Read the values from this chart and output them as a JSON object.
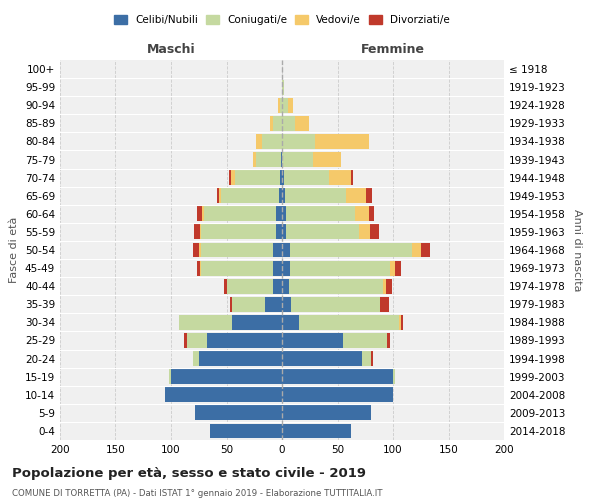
{
  "age_groups": [
    "0-4",
    "5-9",
    "10-14",
    "15-19",
    "20-24",
    "25-29",
    "30-34",
    "35-39",
    "40-44",
    "45-49",
    "50-54",
    "55-59",
    "60-64",
    "65-69",
    "70-74",
    "75-79",
    "80-84",
    "85-89",
    "90-94",
    "95-99",
    "100+"
  ],
  "birth_years": [
    "2014-2018",
    "2009-2013",
    "2004-2008",
    "1999-2003",
    "1994-1998",
    "1989-1993",
    "1984-1988",
    "1979-1983",
    "1974-1978",
    "1969-1973",
    "1964-1968",
    "1959-1963",
    "1954-1958",
    "1949-1953",
    "1944-1948",
    "1939-1943",
    "1934-1938",
    "1929-1933",
    "1924-1928",
    "1919-1923",
    "≤ 1918"
  ],
  "male": {
    "celibi": [
      65,
      78,
      105,
      100,
      75,
      68,
      45,
      15,
      8,
      8,
      8,
      5,
      5,
      3,
      2,
      1,
      0,
      0,
      0,
      0,
      0
    ],
    "coniugati": [
      0,
      0,
      0,
      2,
      5,
      18,
      48,
      30,
      42,
      65,
      65,
      68,
      65,
      52,
      40,
      22,
      18,
      8,
      2,
      0,
      0
    ],
    "vedovi": [
      0,
      0,
      0,
      0,
      0,
      0,
      0,
      0,
      0,
      1,
      2,
      1,
      2,
      2,
      4,
      3,
      5,
      3,
      2,
      0,
      0
    ],
    "divorziati": [
      0,
      0,
      0,
      0,
      0,
      2,
      0,
      2,
      2,
      3,
      5,
      5,
      5,
      2,
      2,
      0,
      0,
      0,
      0,
      0,
      0
    ]
  },
  "female": {
    "nubili": [
      62,
      80,
      100,
      100,
      72,
      55,
      15,
      8,
      6,
      7,
      7,
      4,
      4,
      3,
      2,
      0,
      0,
      0,
      0,
      0,
      0
    ],
    "coniugate": [
      0,
      0,
      0,
      2,
      8,
      40,
      90,
      80,
      85,
      90,
      110,
      65,
      62,
      55,
      40,
      28,
      30,
      12,
      5,
      2,
      0
    ],
    "vedove": [
      0,
      0,
      0,
      0,
      0,
      0,
      2,
      0,
      3,
      5,
      8,
      10,
      12,
      18,
      20,
      25,
      48,
      12,
      5,
      0,
      0
    ],
    "divorziate": [
      0,
      0,
      0,
      0,
      2,
      2,
      2,
      8,
      5,
      5,
      8,
      8,
      5,
      5,
      2,
      0,
      0,
      0,
      0,
      0,
      0
    ]
  },
  "colors": {
    "celibi": "#3c6ea5",
    "coniugati": "#c5d9a0",
    "vedovi": "#f5c96a",
    "divorziati": "#c0392b"
  },
  "xlim": 200,
  "title": "Popolazione per età, sesso e stato civile - 2019",
  "subtitle": "COMUNE DI TORRETTA (PA) - Dati ISTAT 1° gennaio 2019 - Elaborazione TUTTITALIA.IT",
  "ylabel_left": "Fasce di età",
  "ylabel_right": "Anni di nascita",
  "xlabel_left": "Maschi",
  "xlabel_right": "Femmine",
  "bg_color": "#f0f0f0"
}
